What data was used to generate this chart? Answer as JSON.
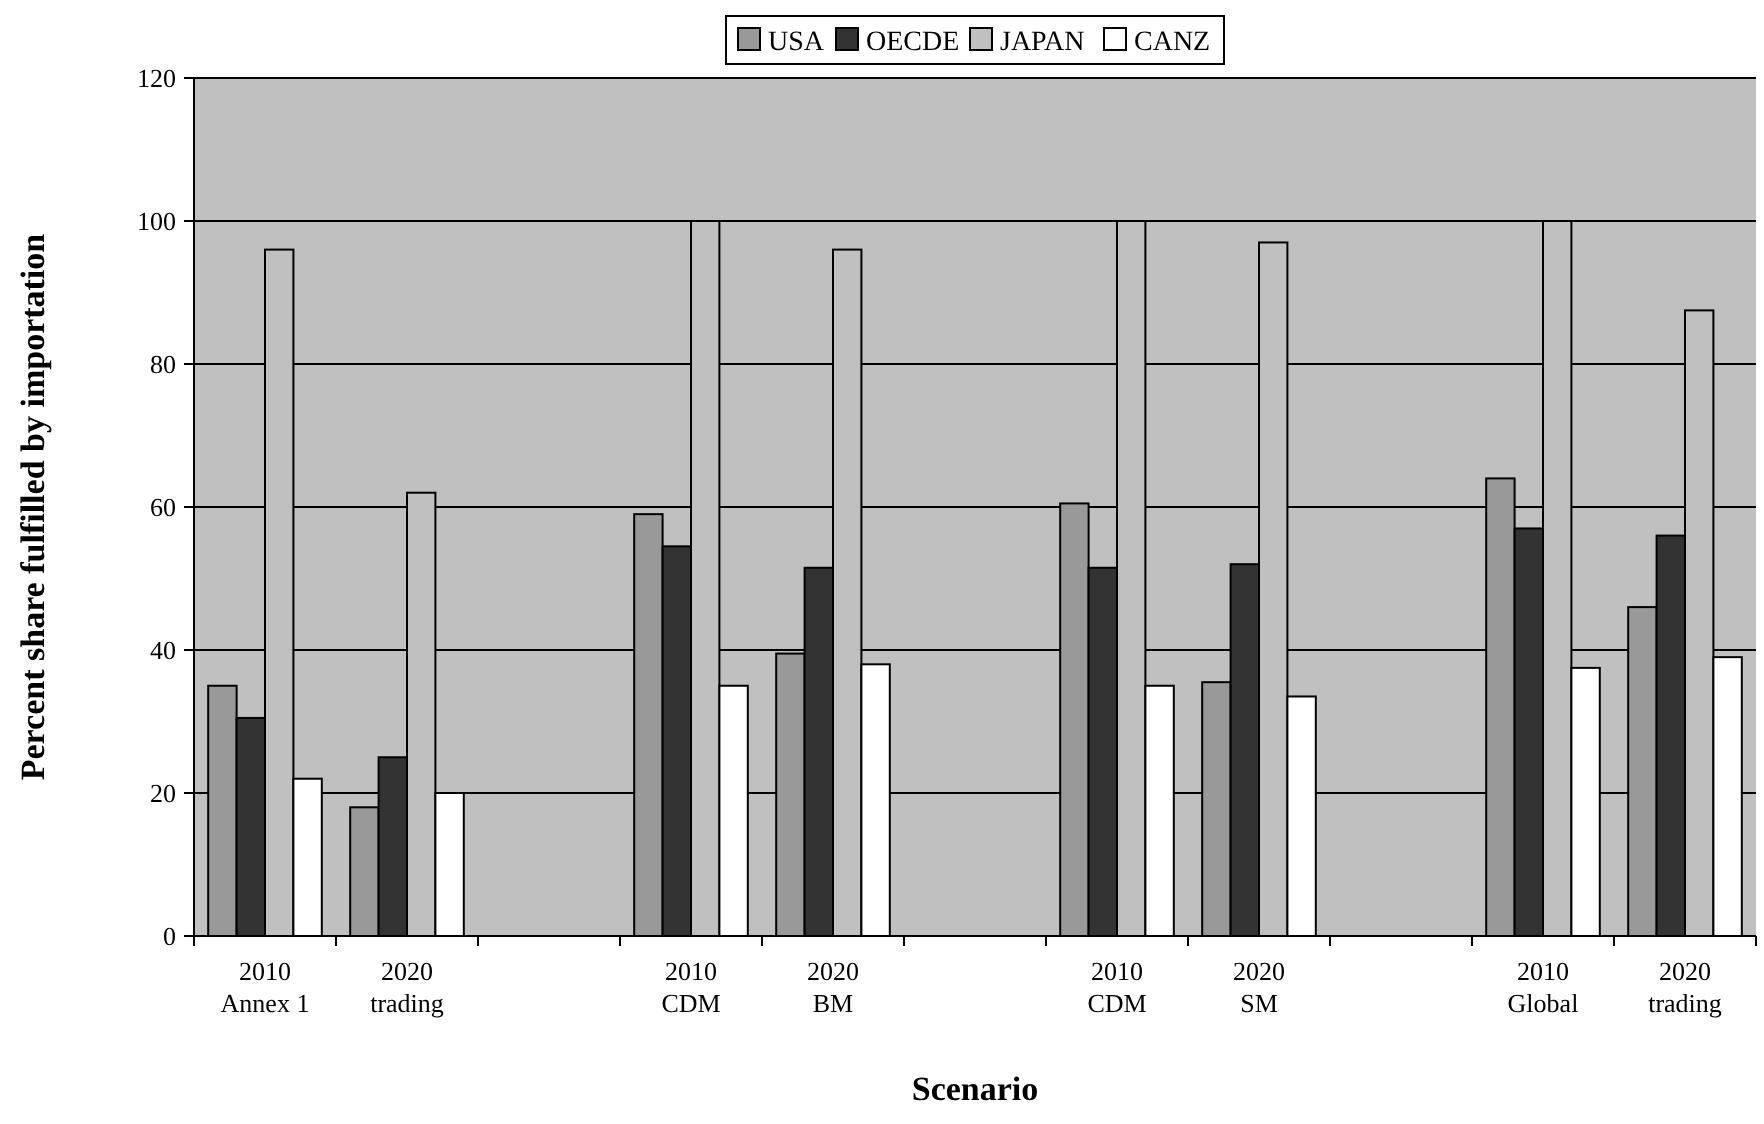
{
  "chart_data": {
    "type": "bar",
    "xlabel": "Scenario",
    "ylabel": "Percent share fulfilled by importation",
    "categories": [
      "2010 Annex 1",
      "2020 trading",
      null,
      "2010 CDM",
      "2020 BM",
      null,
      "2010 CDM",
      "2020 SM",
      null,
      "2010 Global",
      "2020 trading"
    ],
    "series": [
      {
        "name": "USA",
        "color": "#999999",
        "values": [
          35,
          18,
          null,
          59,
          39.5,
          null,
          60.5,
          35.5,
          null,
          64,
          46
        ]
      },
      {
        "name": "OECDE",
        "color": "#333333",
        "values": [
          30.5,
          25,
          null,
          54.5,
          51.5,
          null,
          51.5,
          52,
          null,
          57,
          56
        ]
      },
      {
        "name": "JAPAN",
        "color": "#c0c0c0",
        "values": [
          96,
          62,
          null,
          100,
          96,
          null,
          100,
          97,
          null,
          100,
          87.5
        ]
      },
      {
        "name": "CANZ",
        "color": "#ffffff",
        "values": [
          22,
          20,
          null,
          35,
          38,
          null,
          35,
          33.5,
          null,
          37.5,
          39
        ]
      }
    ],
    "ylim": [
      0,
      120
    ],
    "yticks": [
      0,
      20,
      40,
      60,
      80,
      100,
      120
    ],
    "grid": "y",
    "legend": "top"
  }
}
